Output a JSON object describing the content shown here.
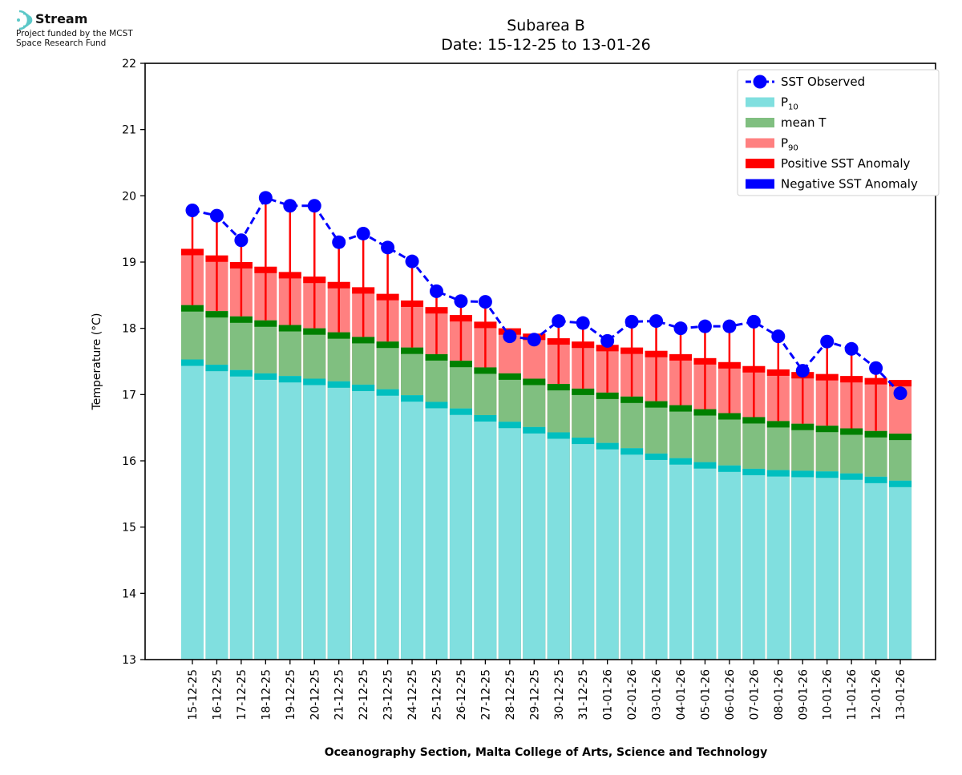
{
  "logo": {
    "name": "Stream",
    "line1": "Project funded by the MCST",
    "line2": "Space Research Fund"
  },
  "chart_data": {
    "type": "bar",
    "title": "Subarea B",
    "subtitle": "Date: 15-12-25 to 13-01-26",
    "xlabel": "Oceanography Section, Malta College of Arts, Science and Technology",
    "ylabel": "Temperature (°C)",
    "ylim": [
      13,
      22
    ],
    "yticks": [
      13,
      14,
      15,
      16,
      17,
      18,
      19,
      20,
      21,
      22
    ],
    "grid": false,
    "legend_position": "top-right",
    "categories": [
      "15-12-25",
      "16-12-25",
      "17-12-25",
      "18-12-25",
      "19-12-25",
      "20-12-25",
      "21-12-25",
      "22-12-25",
      "23-12-25",
      "24-12-25",
      "25-12-25",
      "26-12-25",
      "27-12-25",
      "28-12-25",
      "29-12-25",
      "30-12-25",
      "31-12-25",
      "01-01-26",
      "02-01-26",
      "03-01-26",
      "04-01-26",
      "05-01-26",
      "06-01-26",
      "07-01-26",
      "08-01-26",
      "09-01-26",
      "10-01-26",
      "11-01-26",
      "12-01-26",
      "13-01-26"
    ],
    "series": [
      {
        "name": "SST Observed",
        "color": "#0000ff",
        "style": "dashed line with circle markers",
        "values": [
          19.78,
          19.7,
          19.33,
          19.97,
          19.85,
          19.85,
          19.3,
          19.43,
          19.22,
          19.01,
          18.56,
          18.41,
          18.4,
          17.88,
          17.83,
          18.11,
          18.08,
          17.81,
          18.1,
          18.11,
          18.0,
          18.03,
          18.03,
          18.1,
          17.88,
          17.36,
          17.8,
          17.69,
          17.4,
          17.02
        ]
      },
      {
        "name": "P₁₀",
        "label_base": "P",
        "label_sub": "10",
        "color": "#80dfdf",
        "edge": "#00bfbf",
        "values": [
          17.53,
          17.45,
          17.37,
          17.32,
          17.28,
          17.24,
          17.2,
          17.15,
          17.08,
          16.99,
          16.89,
          16.79,
          16.69,
          16.59,
          16.51,
          16.43,
          16.35,
          16.27,
          16.19,
          16.11,
          16.04,
          15.98,
          15.93,
          15.88,
          15.86,
          15.85,
          15.84,
          15.81,
          15.76,
          15.7
        ]
      },
      {
        "name": "mean T",
        "color": "#80bf80",
        "edge": "#008000",
        "values": [
          18.35,
          18.26,
          18.18,
          18.12,
          18.05,
          18.0,
          17.94,
          17.87,
          17.8,
          17.71,
          17.61,
          17.51,
          17.41,
          17.32,
          17.24,
          17.16,
          17.09,
          17.03,
          16.97,
          16.9,
          16.84,
          16.78,
          16.72,
          16.66,
          16.6,
          16.56,
          16.53,
          16.49,
          16.45,
          16.41
        ]
      },
      {
        "name": "P₉₀",
        "label_base": "P",
        "label_sub": "90",
        "color": "#ff8080",
        "edge": "#ff0000",
        "values": [
          19.2,
          19.1,
          19.0,
          18.93,
          18.85,
          18.78,
          18.7,
          18.62,
          18.52,
          18.42,
          18.32,
          18.2,
          18.1,
          18.0,
          17.92,
          17.85,
          17.8,
          17.75,
          17.71,
          17.66,
          17.61,
          17.55,
          17.49,
          17.43,
          17.38,
          17.34,
          17.31,
          17.28,
          17.25,
          17.22
        ]
      },
      {
        "name": "Positive SST Anomaly",
        "color": "#ff0000"
      },
      {
        "name": "Negative SST Anomaly",
        "color": "#0000ff"
      }
    ]
  }
}
